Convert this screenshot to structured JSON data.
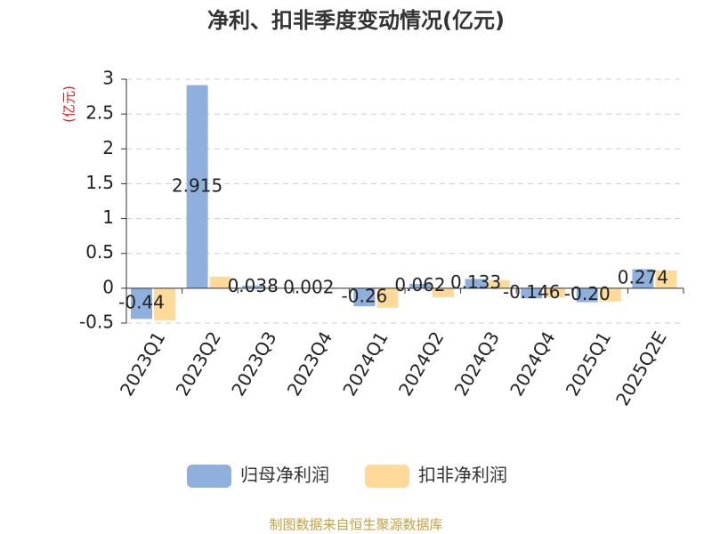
{
  "chart_data": {
    "type": "bar",
    "title": "净利、扣非季度变动情况(亿元)",
    "y_label": "(亿元)",
    "footer": "制图数据来自恒生聚源数据库",
    "categories": [
      "2023Q1",
      "2023Q2",
      "2023Q3",
      "2023Q4",
      "2024Q1",
      "2024Q2",
      "2024Q3",
      "2024Q4",
      "2025Q1",
      "2025Q2E"
    ],
    "series": [
      {
        "name": "归母净利润",
        "color": "#8fb0dd",
        "values": [
          -0.44,
          2.915,
          0.038,
          0.002,
          -0.26,
          0.062,
          0.133,
          -0.146,
          -0.2,
          0.274
        ],
        "value_labels": [
          "-0.44",
          "2.915",
          "0.038",
          "0.002",
          "-0.26",
          "0.062",
          "0.133",
          "-0.146",
          "-0.20",
          "0.274"
        ]
      },
      {
        "name": "扣非净利润",
        "color": "#fdd99a",
        "values": [
          -0.46,
          0.166,
          0,
          0,
          -0.28,
          -0.13,
          0.115,
          -0.13,
          -0.19,
          0.255
        ]
      }
    ],
    "ylim": [
      -0.5,
      3
    ],
    "yticks": [
      -0.5,
      0,
      0.5,
      1,
      1.5,
      2,
      2.5,
      3
    ],
    "grid": true
  }
}
